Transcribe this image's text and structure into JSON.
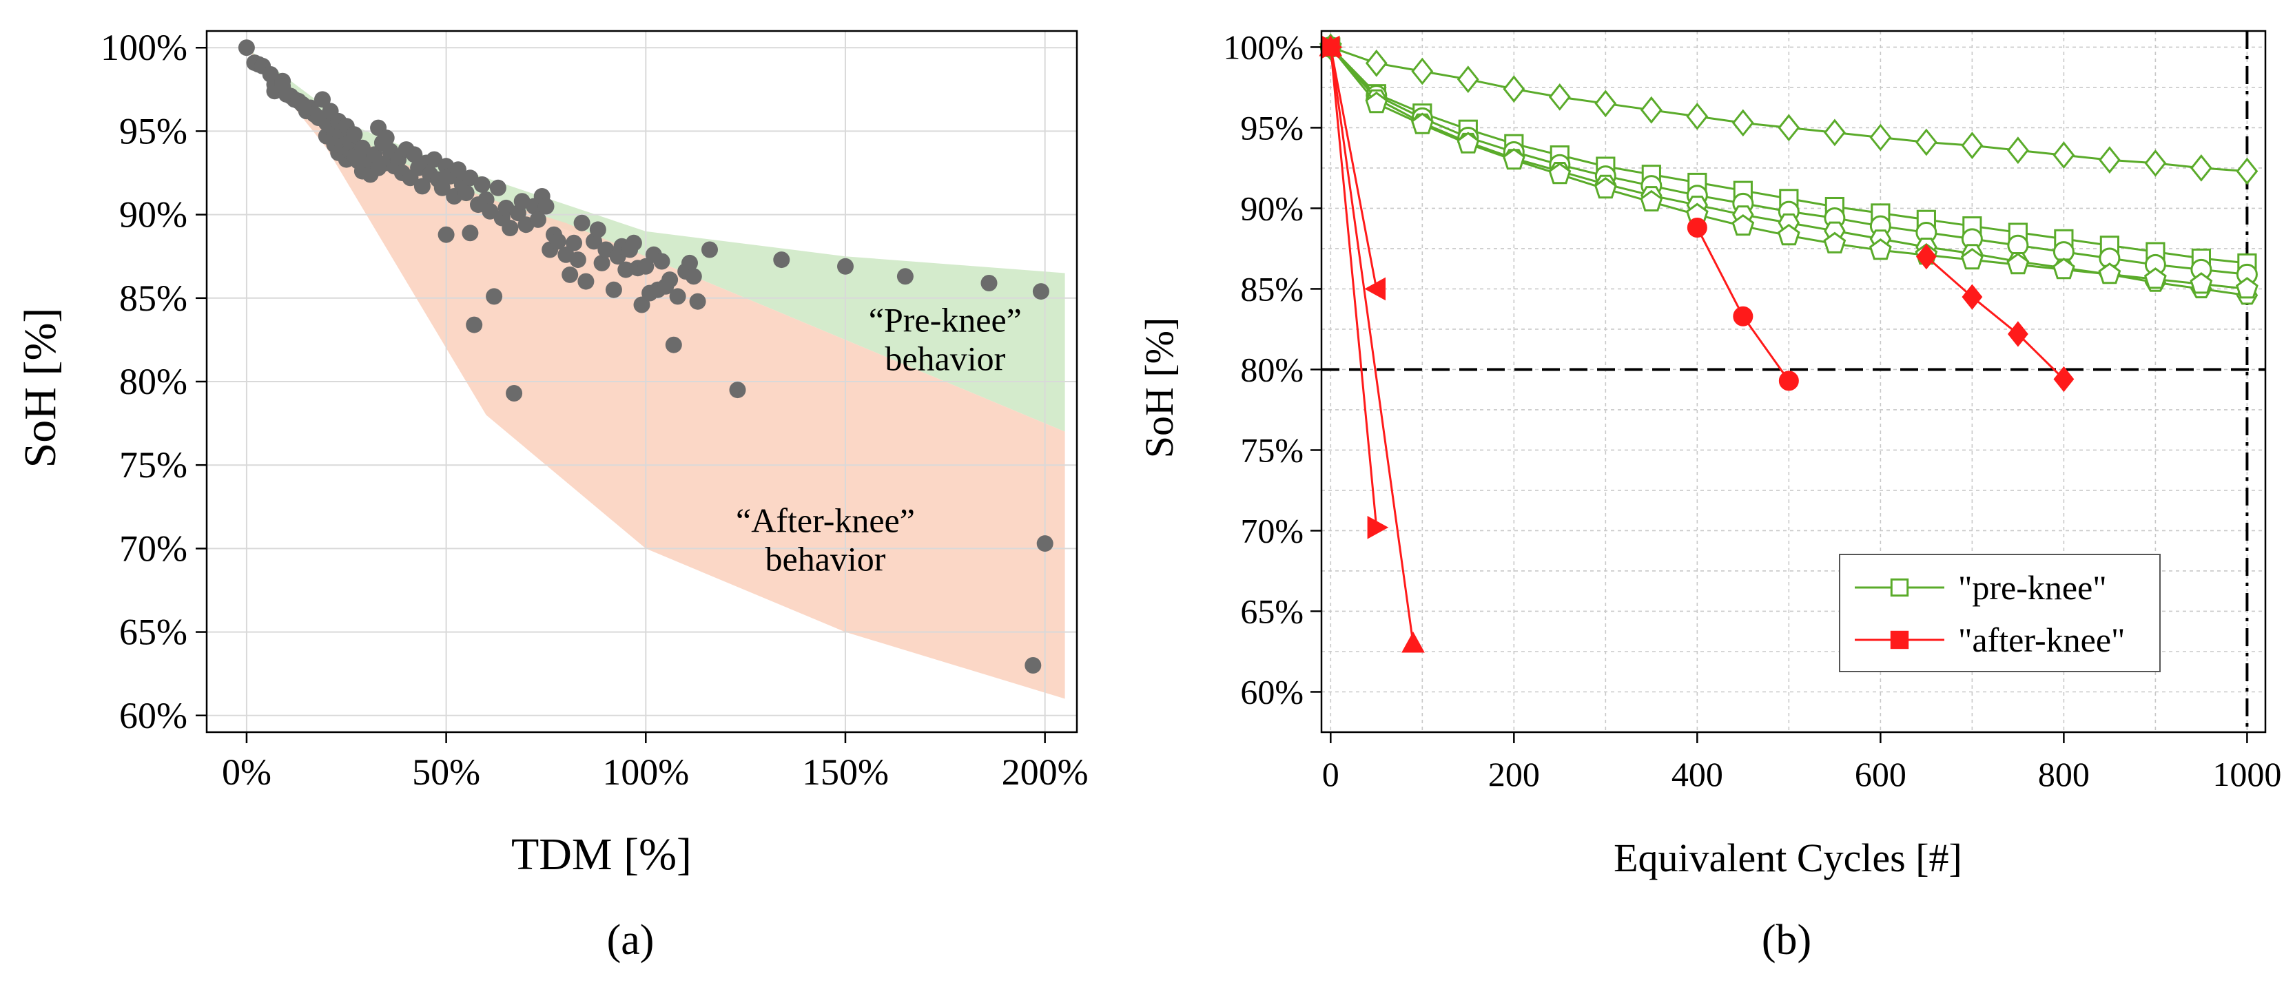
{
  "chart_data": [
    {
      "type": "scatter",
      "panel_label": "(a)",
      "title": "",
      "xlabel": "TDM [%]",
      "ylabel": "SoH [%]",
      "xlim": [
        -10,
        208
      ],
      "ylim": [
        59,
        101
      ],
      "xticks": [
        0,
        50,
        100,
        150,
        200
      ],
      "xtick_labels": [
        "0%",
        "50%",
        "100%",
        "150%",
        "200%"
      ],
      "yticks": [
        60,
        65,
        70,
        75,
        80,
        85,
        90,
        95,
        100
      ],
      "ytick_labels": [
        "60%",
        "65%",
        "70%",
        "75%",
        "80%",
        "85%",
        "90%",
        "95%",
        "100%"
      ],
      "grid": true,
      "colors": {
        "points": "#6b6b6b",
        "pre_band": "#cfe9c6",
        "after_band": "#fbd3c0"
      },
      "annotations": [
        {
          "lines": [
            "“Pre-knee”",
            "behavior"
          ],
          "x": 175,
          "y": 82.5
        },
        {
          "lines": [
            "“After-knee”",
            "behavior"
          ],
          "x": 145,
          "y": 70.5
        }
      ],
      "bands": [
        {
          "name": "Pre-knee",
          "x": [
            0,
            25,
            50,
            75,
            100,
            150,
            205
          ],
          "upper": [
            100,
            95.5,
            93,
            91,
            89,
            87.5,
            86.5
          ],
          "lower": [
            100,
            94,
            91,
            89.5,
            87.5,
            82.5,
            77
          ]
        },
        {
          "name": "After-knee",
          "x": [
            0,
            20,
            40,
            60,
            80,
            100,
            150,
            205
          ],
          "upper": [
            100,
            95.5,
            93,
            91,
            89.5,
            87.5,
            82.5,
            77
          ],
          "lower": [
            100,
            94,
            86,
            78,
            74,
            70,
            65,
            61
          ]
        }
      ],
      "points": [
        [
          0,
          100
        ],
        [
          2,
          99.1
        ],
        [
          3,
          99
        ],
        [
          4,
          98.9
        ],
        [
          6,
          98.4
        ],
        [
          7,
          97.8
        ],
        [
          7,
          97.4
        ],
        [
          9,
          98
        ],
        [
          9,
          97.7
        ],
        [
          10,
          97.2
        ],
        [
          11,
          97.1
        ],
        [
          12,
          96.9
        ],
        [
          13,
          96.8
        ],
        [
          14,
          96.6
        ],
        [
          15,
          96.2
        ],
        [
          16,
          96.4
        ],
        [
          17,
          96
        ],
        [
          18,
          95.8
        ],
        [
          19,
          96.9
        ],
        [
          20,
          95.5
        ],
        [
          20,
          94.7
        ],
        [
          21,
          96.2
        ],
        [
          21,
          95.3
        ],
        [
          22,
          94.8
        ],
        [
          22,
          94.2
        ],
        [
          23,
          95.6
        ],
        [
          23,
          93.7
        ],
        [
          24,
          95
        ],
        [
          24,
          94.1
        ],
        [
          25,
          93.3
        ],
        [
          25,
          95.3
        ],
        [
          26,
          94.4
        ],
        [
          26,
          93.8
        ],
        [
          27,
          94.8
        ],
        [
          27,
          93.5
        ],
        [
          28,
          93.2
        ],
        [
          29,
          94
        ],
        [
          29,
          92.6
        ],
        [
          30,
          93.3
        ],
        [
          31,
          92.4
        ],
        [
          32,
          93.6
        ],
        [
          33,
          95.2
        ],
        [
          33,
          92.8
        ],
        [
          34,
          94.3
        ],
        [
          35,
          94.6
        ],
        [
          35,
          93.1
        ],
        [
          36,
          93.8
        ],
        [
          37,
          92.9
        ],
        [
          38,
          93.3
        ],
        [
          39,
          92.5
        ],
        [
          40,
          93.9
        ],
        [
          41,
          92.2
        ],
        [
          42,
          93.6
        ],
        [
          43,
          92.8
        ],
        [
          44,
          91.7
        ],
        [
          45,
          93.1
        ],
        [
          46,
          92.4
        ],
        [
          47,
          93.3
        ],
        [
          48,
          92.1
        ],
        [
          49,
          91.6
        ],
        [
          50,
          92.9
        ],
        [
          50,
          88.8
        ],
        [
          51,
          92.3
        ],
        [
          52,
          91.1
        ],
        [
          53,
          92.7
        ],
        [
          54,
          91.8
        ],
        [
          55,
          91.3
        ],
        [
          56,
          92.2
        ],
        [
          56,
          88.9
        ],
        [
          57,
          83.4
        ],
        [
          58,
          90.6
        ],
        [
          59,
          91.8
        ],
        [
          60,
          90.9
        ],
        [
          61,
          90.2
        ],
        [
          62,
          85.1
        ],
        [
          63,
          91.6
        ],
        [
          64,
          89.8
        ],
        [
          65,
          90.4
        ],
        [
          66,
          89.2
        ],
        [
          67,
          79.3
        ],
        [
          68,
          90.1
        ],
        [
          69,
          90.8
        ],
        [
          70,
          89.4
        ],
        [
          72,
          90.5
        ],
        [
          73,
          89.7
        ],
        [
          74,
          91.1
        ],
        [
          75,
          90.5
        ],
        [
          76,
          87.9
        ],
        [
          77,
          88.8
        ],
        [
          78,
          88.4
        ],
        [
          80,
          87.6
        ],
        [
          81,
          86.4
        ],
        [
          82,
          88.3
        ],
        [
          83,
          87.3
        ],
        [
          84,
          89.5
        ],
        [
          85,
          86
        ],
        [
          87,
          88.4
        ],
        [
          88,
          89.1
        ],
        [
          89,
          87.1
        ],
        [
          90,
          87.9
        ],
        [
          92,
          85.5
        ],
        [
          93,
          87.5
        ],
        [
          94,
          88.1
        ],
        [
          95,
          86.7
        ],
        [
          96,
          87.9
        ],
        [
          97,
          88.3
        ],
        [
          98,
          86.8
        ],
        [
          99,
          84.6
        ],
        [
          100,
          86.9
        ],
        [
          101,
          85.3
        ],
        [
          102,
          87.6
        ],
        [
          103,
          85.5
        ],
        [
          104,
          87.2
        ],
        [
          105,
          85.7
        ],
        [
          106,
          86.1
        ],
        [
          107,
          82.2
        ],
        [
          108,
          85.1
        ],
        [
          110,
          86.6
        ],
        [
          111,
          87.1
        ],
        [
          112,
          86.3
        ],
        [
          113,
          84.8
        ],
        [
          116,
          87.9
        ],
        [
          123,
          79.5
        ],
        [
          134,
          87.3
        ],
        [
          150,
          86.9
        ],
        [
          165,
          86.3
        ],
        [
          186,
          85.9
        ],
        [
          197,
          63
        ],
        [
          199,
          85.4
        ],
        [
          200,
          70.3
        ]
      ]
    },
    {
      "type": "line",
      "panel_label": "(b)",
      "title": "",
      "xlabel": "Equivalent Cycles [#]",
      "ylabel": "SoH [%]",
      "xlim": [
        -10,
        1020
      ],
      "ylim": [
        57.5,
        101
      ],
      "xticks": [
        0,
        200,
        400,
        600,
        800,
        1000
      ],
      "xtick_labels": [
        "0",
        "200",
        "400",
        "600",
        "800",
        "1000"
      ],
      "yticks": [
        60,
        65,
        70,
        75,
        80,
        85,
        90,
        95,
        100
      ],
      "ytick_labels": [
        "60%",
        "65%",
        "70%",
        "75%",
        "80%",
        "85%",
        "90%",
        "95%",
        "100%"
      ],
      "grid": true,
      "reference_lines": {
        "h": 80,
        "v": 1000
      },
      "colors": {
        "pre": "#5aab2a",
        "after": "#ff1a1a",
        "ref": "#000000"
      },
      "legend": {
        "position": "bottom-right",
        "entries": [
          "\"pre-knee\"",
          "\"after-knee\""
        ]
      },
      "series": [
        {
          "name": "pre-knee diamond",
          "group": "pre",
          "marker": "diamond",
          "x": [
            0,
            50,
            100,
            150,
            200,
            250,
            300,
            350,
            400,
            450,
            500,
            550,
            600,
            650,
            700,
            750,
            800,
            850,
            900,
            950,
            1000
          ],
          "y": [
            100,
            99,
            98.5,
            98,
            97.4,
            96.9,
            96.5,
            96.1,
            95.7,
            95.3,
            95,
            94.7,
            94.4,
            94.1,
            93.9,
            93.6,
            93.3,
            93,
            92.8,
            92.5,
            92.3
          ]
        },
        {
          "name": "pre-knee square",
          "group": "pre",
          "marker": "square",
          "x": [
            0,
            50,
            100,
            150,
            200,
            250,
            300,
            350,
            400,
            450,
            500,
            550,
            600,
            650,
            700,
            750,
            800,
            850,
            900,
            950,
            1000
          ],
          "y": [
            100,
            97.1,
            95.9,
            94.9,
            94,
            93.3,
            92.6,
            92.1,
            91.6,
            91.1,
            90.6,
            90.1,
            89.7,
            89.3,
            88.9,
            88.5,
            88.1,
            87.7,
            87.3,
            86.9,
            86.6
          ]
        },
        {
          "name": "pre-knee circle",
          "group": "pre",
          "marker": "circle",
          "x": [
            0,
            50,
            100,
            150,
            200,
            250,
            300,
            350,
            400,
            450,
            500,
            550,
            600,
            650,
            700,
            750,
            800,
            850,
            900,
            950,
            1000
          ],
          "y": [
            100,
            97,
            95.6,
            94.4,
            93.5,
            92.7,
            92,
            91.4,
            90.8,
            90.3,
            89.8,
            89.4,
            88.9,
            88.5,
            88.1,
            87.7,
            87.3,
            86.9,
            86.5,
            86.2,
            85.9
          ]
        },
        {
          "name": "pre-knee hexagon",
          "group": "pre",
          "marker": "hexagon",
          "x": [
            0,
            50,
            100,
            150,
            200,
            250,
            300,
            350,
            400,
            450,
            500,
            550,
            600,
            650,
            700,
            750,
            800,
            850,
            900,
            950,
            1000
          ],
          "y": [
            100,
            96.8,
            95.3,
            94.1,
            93.1,
            92.3,
            91.5,
            90.8,
            90.2,
            89.6,
            89.1,
            88.6,
            88.1,
            87.6,
            87.2,
            86.7,
            86.3,
            85.9,
            85.4,
            85,
            84.6
          ]
        },
        {
          "name": "pre-knee pentagon",
          "group": "pre",
          "marker": "pentagon",
          "x": [
            0,
            50,
            100,
            150,
            200,
            250,
            300,
            350,
            400,
            450,
            500,
            550,
            600,
            650,
            700,
            750,
            800,
            850,
            900,
            950,
            1000
          ],
          "y": [
            100,
            96.5,
            95.2,
            94,
            93,
            92.1,
            91.2,
            90.4,
            89.6,
            88.9,
            88.3,
            87.8,
            87.4,
            87.1,
            86.8,
            86.5,
            86.2,
            85.9,
            85.6,
            85.3,
            85
          ]
        },
        {
          "name": "after-knee triangle-left",
          "group": "after",
          "marker": "triangle-left",
          "x": [
            0,
            50
          ],
          "y": [
            100,
            85
          ]
        },
        {
          "name": "after-knee triangle-right",
          "group": "after",
          "marker": "triangle-right",
          "x": [
            0,
            50
          ],
          "y": [
            100,
            70.2
          ]
        },
        {
          "name": "after-knee triangle-up",
          "group": "after",
          "marker": "triangle-up",
          "x": [
            0,
            90
          ],
          "y": [
            100,
            63
          ]
        },
        {
          "name": "after-knee circle",
          "group": "after",
          "marker": "circle",
          "x": [
            400,
            450,
            500
          ],
          "y": [
            88.8,
            83.3,
            79.3
          ]
        },
        {
          "name": "after-knee diamond",
          "group": "after",
          "marker": "diamond",
          "x": [
            650,
            700,
            750,
            800
          ],
          "y": [
            87,
            84.5,
            82.2,
            79.4
          ]
        }
      ]
    }
  ]
}
